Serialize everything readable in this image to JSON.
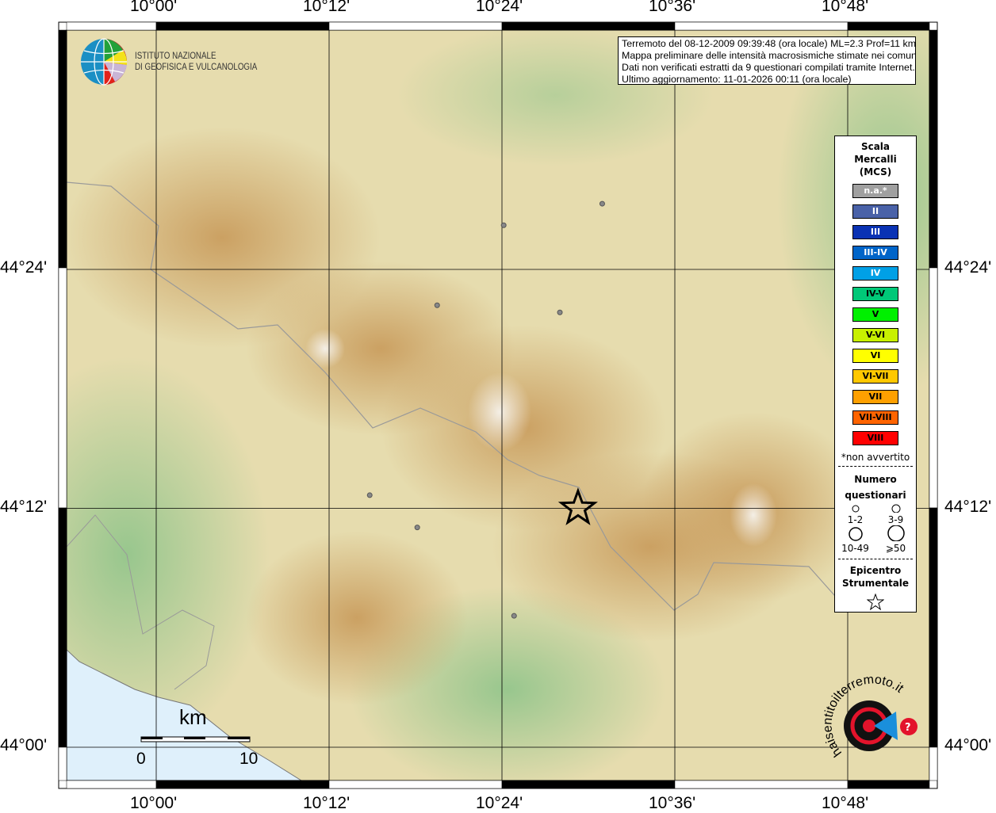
{
  "map": {
    "lon_ticks": [
      "10°00'",
      "10°12'",
      "10°24'",
      "10°36'",
      "10°48'"
    ],
    "lat_ticks": [
      "44°24'",
      "44°12'",
      "44°00'"
    ],
    "lon_values": [
      10.0,
      10.2,
      10.4,
      10.6,
      10.8
    ],
    "lat_values": [
      44.4,
      44.2,
      44.0
    ],
    "epicenter": {
      "lon": 10.488,
      "lat": 44.2
    },
    "points": [
      {
        "lon": 10.402,
        "lat": 44.437
      },
      {
        "lon": 10.516,
        "lat": 44.455
      },
      {
        "lon": 10.325,
        "lat": 44.37
      },
      {
        "lon": 10.467,
        "lat": 44.364
      },
      {
        "lon": 10.247,
        "lat": 44.211
      },
      {
        "lon": 10.302,
        "lat": 44.184
      },
      {
        "lon": 10.414,
        "lat": 44.11
      }
    ],
    "point_color": "#888888",
    "scale": {
      "unit": "km",
      "ticks": [
        "0",
        "10"
      ]
    }
  },
  "info": {
    "line1": "Terremoto del 08-12-2009 09:39:48 (ora locale) ML=2.3 Prof=11 km",
    "line2": "Mappa preliminare delle intensità macrosismiche stimate nei comuni",
    "line3": "Dati non verificati estratti da 9 questionari compilati tramite Internet.",
    "line4": "Ultimo aggiornamento: 11-01-2026 00:11 (ora locale)"
  },
  "logo": {
    "ingv_line1": "ISTITUTO NAZIONALE",
    "ingv_line2": "DI GEOFISICA E VULCANOLOGIA",
    "hsit": "www.haisentitoilterremoto.it"
  },
  "legend": {
    "title1": "Scala",
    "title2": "Mercalli",
    "title3": "(MCS)",
    "items": [
      {
        "label": "n.a.*",
        "color": "#a0a0a0",
        "text": "#fff"
      },
      {
        "label": "II",
        "color": "#4a62a8",
        "text": "#fff"
      },
      {
        "label": "III",
        "color": "#0a32b4",
        "text": "#fff"
      },
      {
        "label": "III-IV",
        "color": "#0064c8",
        "text": "#fff"
      },
      {
        "label": "IV",
        "color": "#00a0e6",
        "text": "#fff"
      },
      {
        "label": "IV-V",
        "color": "#00c878",
        "text": "#000"
      },
      {
        "label": "V",
        "color": "#00f000",
        "text": "#000"
      },
      {
        "label": "V-VI",
        "color": "#c8f000",
        "text": "#000"
      },
      {
        "label": "VI",
        "color": "#ffff00",
        "text": "#000"
      },
      {
        "label": "VI-VII",
        "color": "#ffc800",
        "text": "#000"
      },
      {
        "label": "VII",
        "color": "#ffa000",
        "text": "#000"
      },
      {
        "label": "VII-VIII",
        "color": "#ff6400",
        "text": "#000"
      },
      {
        "label": "VIII",
        "color": "#ff0000",
        "text": "#000"
      }
    ],
    "note": "*non avvertito",
    "num_title1": "Numero",
    "num_title2": "questionari",
    "sizes": [
      "1-2",
      "3-9",
      "10-49",
      "⩾50"
    ],
    "epi1": "Epicentro",
    "epi2": "Strumentale"
  }
}
